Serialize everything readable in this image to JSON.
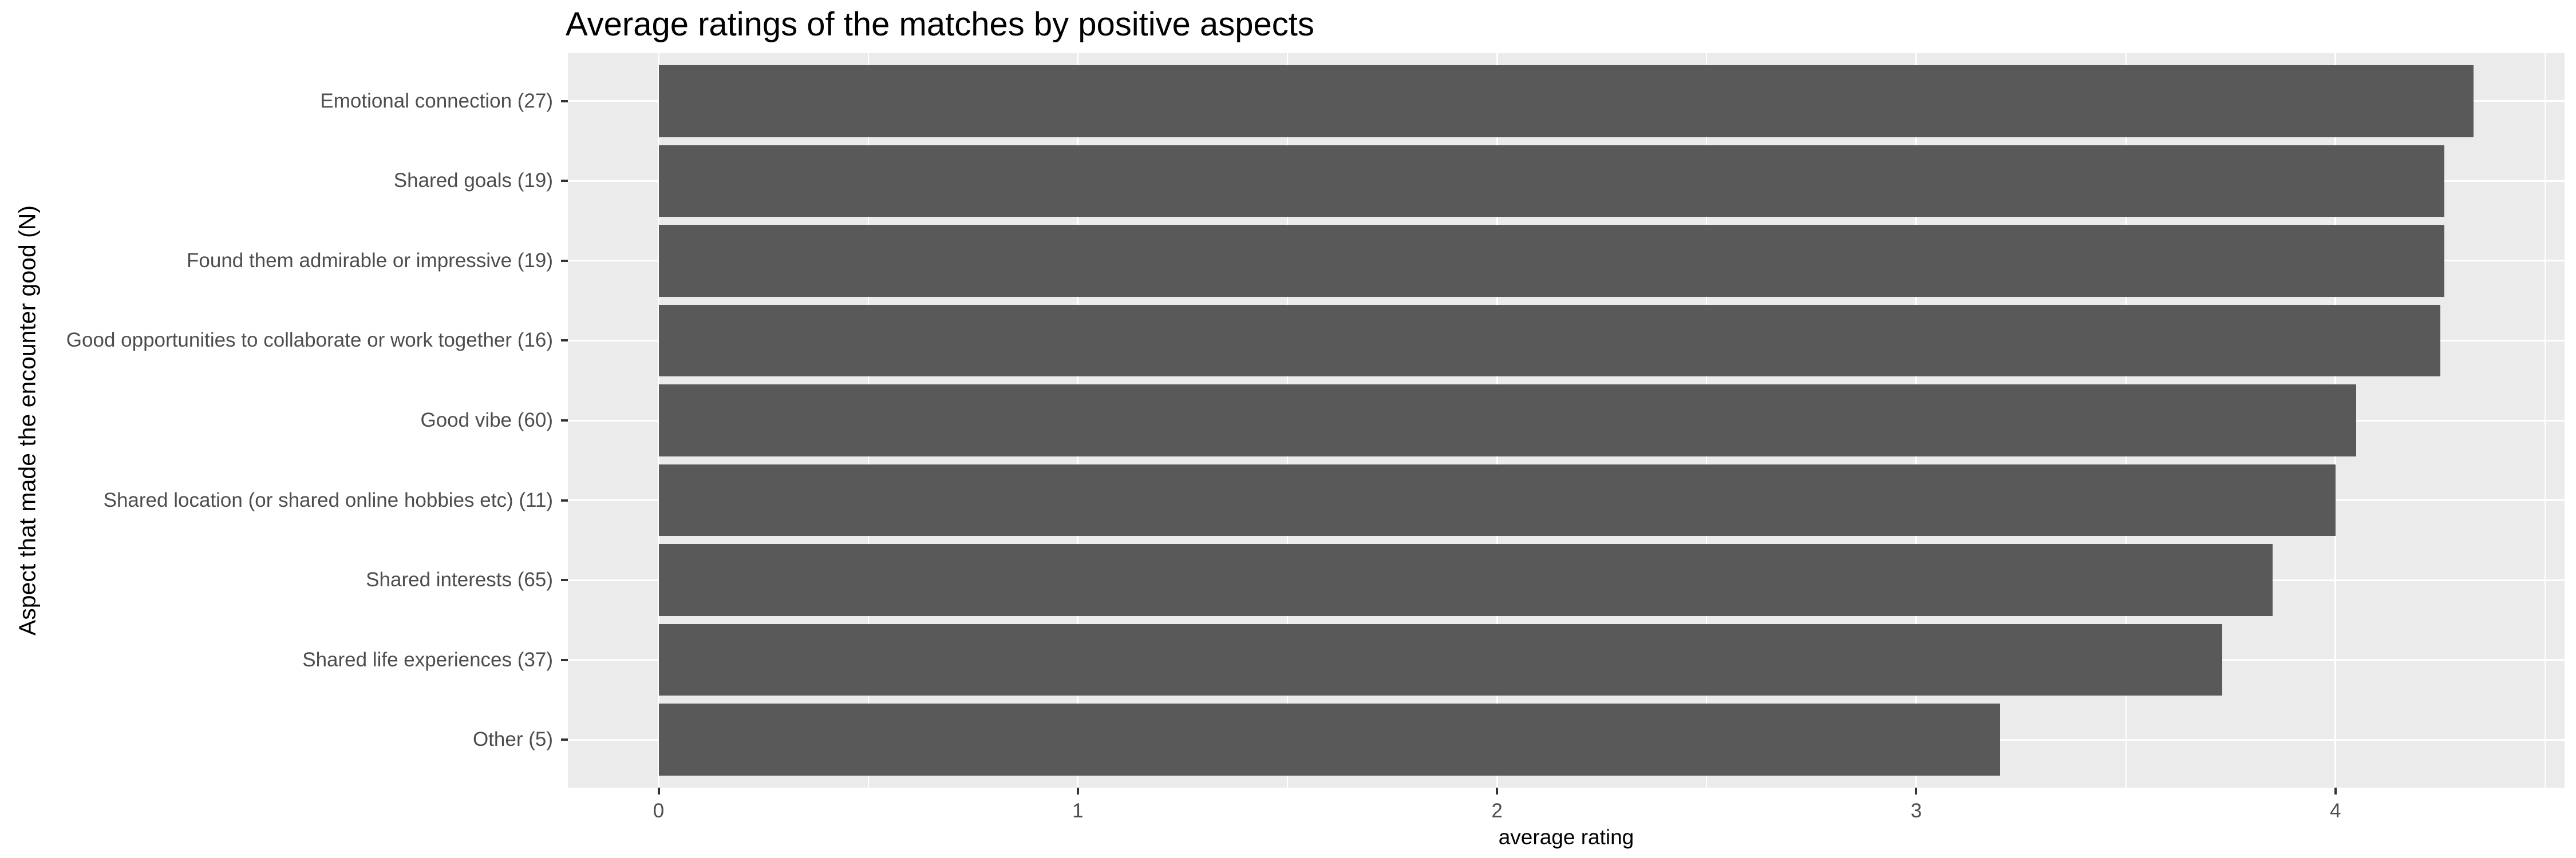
{
  "chart_data": {
    "type": "bar",
    "orientation": "horizontal",
    "title": "Average ratings of the matches by positive aspects",
    "xlabel": "average rating",
    "ylabel": "Aspect that made the encounter good (N)",
    "categories": [
      "Emotional connection (27)",
      "Shared goals (19)",
      "Found them admirable or impressive (19)",
      "Good opportunities to collaborate or work together (16)",
      "Good vibe (60)",
      "Shared location (or shared online hobbies etc) (11)",
      "Shared interests (65)",
      "Shared life experiences (37)",
      "Other (5)"
    ],
    "values": [
      4.33,
      4.26,
      4.26,
      4.25,
      4.05,
      4.0,
      3.85,
      3.73,
      3.2
    ],
    "xticks": [
      0,
      1,
      2,
      3,
      4
    ],
    "xticks_minor": [
      0.5,
      1.5,
      2.5,
      3.5,
      4.5
    ],
    "xlim": [
      -0.2165,
      4.5465
    ],
    "bar_width_fraction": 0.9,
    "category_expand": 0.6,
    "grid": true,
    "legend": false,
    "colors": {
      "bar": "#595959",
      "panel_background": "#EBEBEB",
      "gridline": "#FFFFFF",
      "tick_label": "#4D4D4D",
      "tick_mark": "#333333",
      "axis_title": "#000000",
      "title": "#000000",
      "page_background": "#FFFFFF"
    }
  }
}
